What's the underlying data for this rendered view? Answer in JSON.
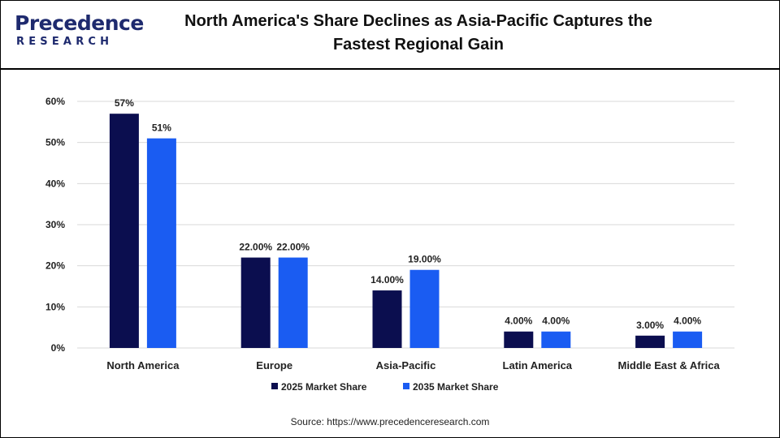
{
  "logo": {
    "word": "Precedence",
    "sub": "RESEARCH"
  },
  "title": "North America's Share Declines as Asia-Pacific Captures the Fastest Regional Gain",
  "source": "Source: https://www.precedenceresearch.com",
  "colors": {
    "series1": "#0b0e4f",
    "series2": "#1a5cf2",
    "grid": "#d9d9d9",
    "logo": "#1e2a6e"
  },
  "chart_data": {
    "type": "bar",
    "categories": [
      "North America",
      "Europe",
      "Asia-Pacific",
      "Latin America",
      "Middle East & Africa"
    ],
    "series": [
      {
        "name": "2025 Market Share",
        "values": [
          57,
          22,
          14,
          4,
          3
        ],
        "labels": [
          "57%",
          "22.00%",
          "14.00%",
          "4.00%",
          "3.00%"
        ]
      },
      {
        "name": "2035 Market Share",
        "values": [
          51,
          22,
          19,
          4,
          4
        ],
        "labels": [
          "51%",
          "22.00%",
          "19.00%",
          "4.00%",
          "4.00%"
        ]
      }
    ],
    "ylim": [
      0,
      60
    ],
    "yticks": [
      "0%",
      "10%",
      "20%",
      "30%",
      "40%",
      "50%",
      "60%"
    ],
    "grid": true,
    "legend": "bottom"
  }
}
